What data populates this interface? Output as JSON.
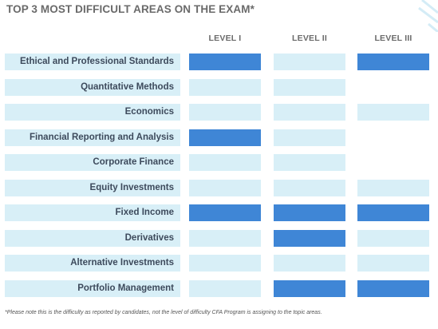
{
  "chart_data": {
    "type": "table",
    "title": "TOP 3 MOST DIFFICULT AREAS ON THE EXAM*",
    "columns": [
      "LEVEL I",
      "LEVEL II",
      "LEVEL III"
    ],
    "rows": [
      {
        "label": "Ethical and Professional Standards",
        "values": [
          1,
          0,
          1
        ]
      },
      {
        "label": "Quantitative Methods",
        "values": [
          0,
          0,
          null
        ]
      },
      {
        "label": "Economics",
        "values": [
          0,
          0,
          0
        ]
      },
      {
        "label": "Financial Reporting and Analysis",
        "values": [
          1,
          0,
          null
        ]
      },
      {
        "label": "Corporate Finance",
        "values": [
          0,
          0,
          null
        ]
      },
      {
        "label": "Equity Investments",
        "values": [
          0,
          0,
          0
        ]
      },
      {
        "label": "Fixed Income",
        "values": [
          1,
          1,
          1
        ]
      },
      {
        "label": "Derivatives",
        "values": [
          0,
          1,
          0
        ]
      },
      {
        "label": "Alternative Investments",
        "values": [
          0,
          0,
          0
        ]
      },
      {
        "label": "Portfolio Management",
        "values": [
          0,
          1,
          1
        ]
      }
    ],
    "footnote": "*Please note this is the difficulty as reported by candidates, not the level of difficulty CFA Program is assigning to the topic areas.",
    "colors": {
      "difficult": "#3f86d6",
      "not_difficult": "#d8eff7"
    }
  }
}
